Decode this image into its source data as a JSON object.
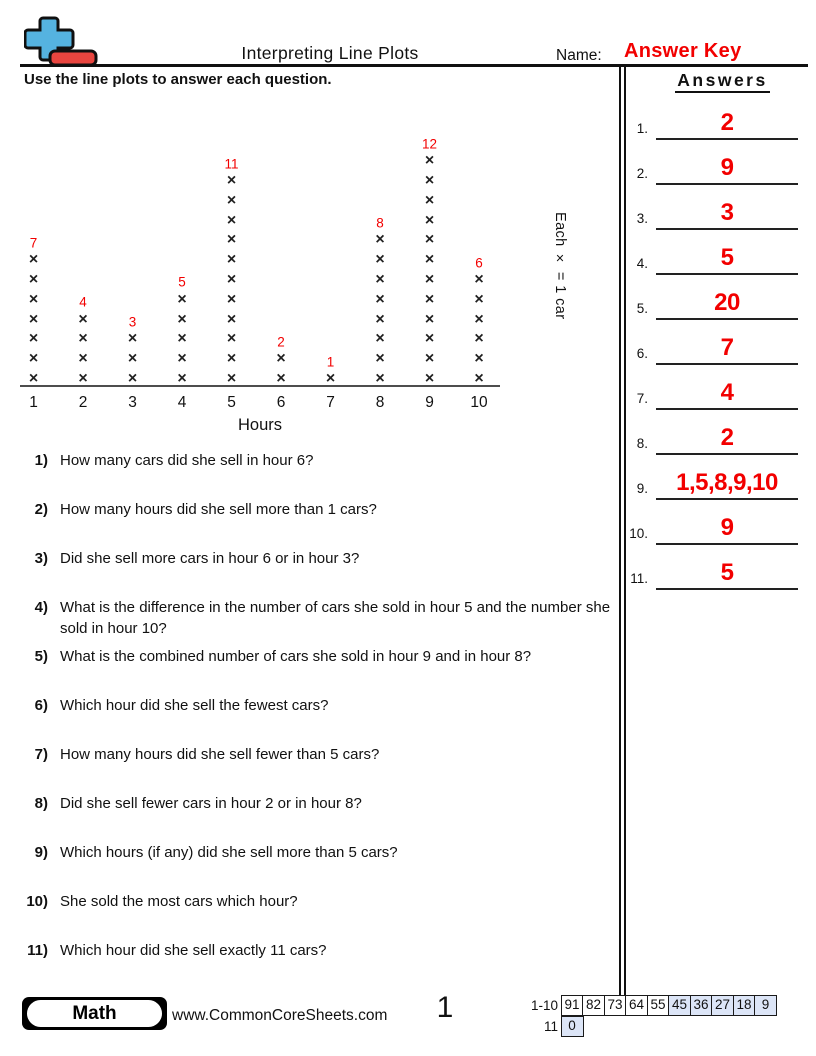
{
  "header": {
    "title": "Interpreting Line Plots",
    "name_label": "Name:",
    "name_value": "Answer Key",
    "name_value_color": "#f20000",
    "instruction": "Use the line plots to answer each question.",
    "logo": {
      "plus_color": "#55b3e0",
      "minus_color": "#e8453f"
    }
  },
  "chart_data": {
    "type": "line_plot",
    "x": [
      1,
      2,
      3,
      4,
      5,
      6,
      7,
      8,
      9,
      10
    ],
    "counts": [
      7,
      4,
      3,
      5,
      11,
      2,
      1,
      8,
      12,
      6
    ],
    "marker": "×",
    "marker_color": "#212121",
    "label_color": "#f20000",
    "xlabel": "Hours",
    "key_label": "Each × = 1 car",
    "grid": false
  },
  "questions": [
    {
      "num": "1)",
      "text": "How many cars did she sell in hour 6?"
    },
    {
      "num": "2)",
      "text": "How many hours did she sell more than 1 cars?"
    },
    {
      "num": "3)",
      "text": "Did she sell more cars in hour 6 or in hour 3?"
    },
    {
      "num": "4)",
      "text": "What is the difference in the number of cars she sold in hour 5 and the number she sold in hour 10?"
    },
    {
      "num": "5)",
      "text": "What is the combined number of cars she sold in hour 9 and in hour 8?"
    },
    {
      "num": "6)",
      "text": "Which hour did she sell the fewest cars?"
    },
    {
      "num": "7)",
      "text": "How many hours did she sell fewer than 5 cars?"
    },
    {
      "num": "8)",
      "text": "Did she sell fewer cars in hour 2 or in hour 8?"
    },
    {
      "num": "9)",
      "text": "Which hours (if any) did she sell more than 5 cars?"
    },
    {
      "num": "10)",
      "text": "She sold the most cars which hour?"
    },
    {
      "num": "11)",
      "text": "Which hour did she sell exactly 11 cars?"
    }
  ],
  "answers": {
    "heading": "Answers",
    "answer_color": "#f20000",
    "items": [
      {
        "num": "1.",
        "value": "2"
      },
      {
        "num": "2.",
        "value": "9"
      },
      {
        "num": "3.",
        "value": "3"
      },
      {
        "num": "4.",
        "value": "5"
      },
      {
        "num": "5.",
        "value": "20"
      },
      {
        "num": "6.",
        "value": "7"
      },
      {
        "num": "7.",
        "value": "4"
      },
      {
        "num": "8.",
        "value": "2"
      },
      {
        "num": "9.",
        "value": "1,5,8,9,10"
      },
      {
        "num": "10.",
        "value": "9"
      },
      {
        "num": "11.",
        "value": "5"
      }
    ]
  },
  "footer": {
    "subject": "Math",
    "website": "www.CommonCoreSheets.com",
    "page_number": "1",
    "score_table": {
      "row1_label": "1-10",
      "row1_values": [
        "91",
        "82",
        "73",
        "64",
        "55",
        "45",
        "36",
        "27",
        "18",
        "9"
      ],
      "row1_highlight_from_index": 5,
      "row2_label": "11",
      "row2_values": [
        "0"
      ],
      "highlight_color": "#dce5f7"
    }
  }
}
